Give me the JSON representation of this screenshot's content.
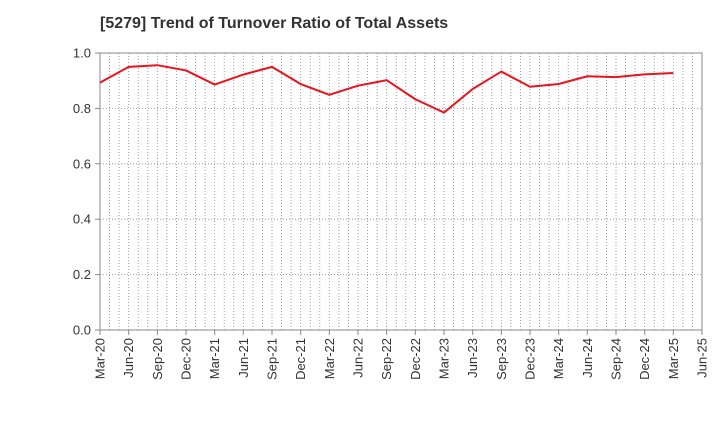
{
  "chart_data": {
    "type": "line",
    "title": "[5279]  Trend of Turnover Ratio of Total Assets",
    "xlabel": "",
    "ylabel": "",
    "ylim": [
      0.0,
      1.0
    ],
    "yticks": [
      "0.0",
      "0.2",
      "0.4",
      "0.6",
      "0.8",
      "1.0"
    ],
    "x_tick_labels": [
      "Mar-20",
      "Jun-20",
      "Sep-20",
      "Dec-20",
      "Mar-21",
      "Jun-21",
      "Sep-21",
      "Dec-21",
      "Mar-22",
      "Jun-22",
      "Sep-22",
      "Dec-22",
      "Mar-23",
      "Jun-23",
      "Sep-23",
      "Dec-23",
      "Mar-24",
      "Jun-24",
      "Sep-24",
      "Dec-24",
      "Mar-25",
      "Jun-25"
    ],
    "grid": true,
    "legend": "none",
    "series": [
      {
        "color": "#e8141e",
        "x": [
          "Mar-20",
          "Jun-20",
          "Sep-20",
          "Dec-20",
          "Mar-21",
          "Jun-21",
          "Sep-21",
          "Dec-21",
          "Mar-22",
          "Jun-22",
          "Sep-22",
          "Dec-22",
          "Mar-23",
          "Jun-23",
          "Sep-23",
          "Dec-23",
          "Mar-24",
          "Jun-24",
          "Sep-24",
          "Dec-24",
          "Mar-25"
        ],
        "values": [
          0.893,
          0.95,
          0.956,
          0.937,
          0.886,
          0.922,
          0.95,
          0.888,
          0.849,
          0.882,
          0.902,
          0.833,
          0.785,
          0.87,
          0.933,
          0.878,
          0.888,
          0.916,
          0.913,
          0.923,
          0.928
        ]
      }
    ]
  }
}
